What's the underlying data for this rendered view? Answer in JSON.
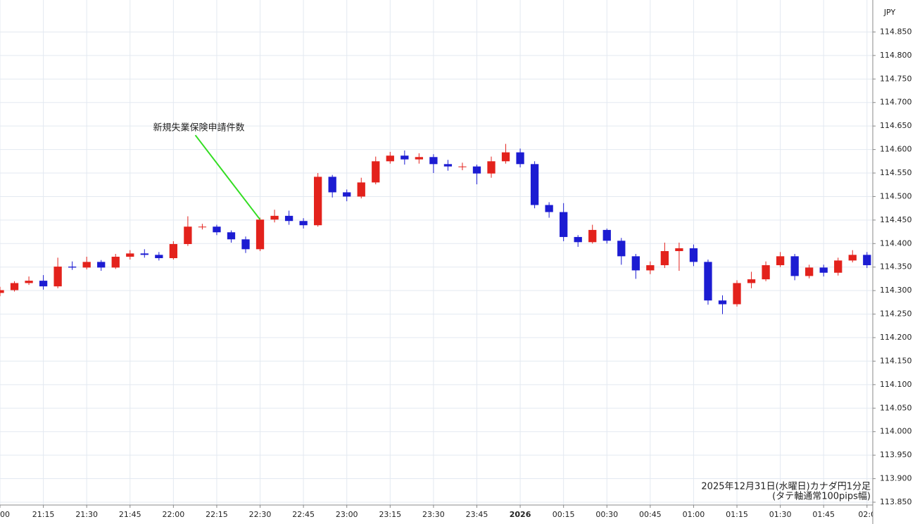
{
  "chart_data": {
    "type": "candlestick",
    "currency": "JPY",
    "caption": [
      "2025年12月31日(水曜日)カナダ円1分足",
      "(タテ軸通常100pips幅)"
    ],
    "x": [
      "21:00",
      "21:05",
      "21:10",
      "21:15",
      "21:20",
      "21:25",
      "21:30",
      "21:35",
      "21:40",
      "21:45",
      "21:50",
      "21:55",
      "22:00",
      "22:05",
      "22:10",
      "22:15",
      "22:20",
      "22:25",
      "22:30",
      "22:35",
      "22:40",
      "22:45",
      "22:50",
      "22:55",
      "23:00",
      "23:05",
      "23:10",
      "23:15",
      "23:20",
      "23:25",
      "23:30",
      "23:35",
      "23:40",
      "23:45",
      "23:50",
      "23:55",
      "00:00",
      "00:05",
      "00:10",
      "00:15",
      "00:20",
      "00:25",
      "00:30",
      "00:35",
      "00:40",
      "00:45",
      "00:50",
      "00:55",
      "01:00",
      "01:05",
      "01:10",
      "01:15",
      "01:20",
      "01:25",
      "01:30",
      "01:35",
      "01:40",
      "01:45",
      "01:50",
      "01:55",
      "02:00"
    ],
    "open": [
      114.295,
      114.301,
      114.316,
      114.321,
      114.309,
      114.351,
      114.349,
      114.361,
      114.349,
      114.372,
      114.379,
      114.376,
      114.369,
      114.399,
      114.436,
      114.436,
      114.424,
      114.409,
      114.388,
      114.451,
      114.459,
      114.448,
      114.439,
      114.542,
      114.509,
      114.5,
      114.53,
      114.575,
      114.587,
      114.579,
      114.584,
      114.569,
      114.564,
      114.564,
      114.549,
      114.575,
      114.594,
      114.569,
      114.482,
      114.467,
      114.414,
      114.403,
      114.429,
      114.406,
      114.373,
      114.343,
      114.354,
      114.384,
      114.39,
      114.361,
      114.279,
      114.271,
      114.316,
      114.324,
      114.354,
      114.373,
      114.331,
      114.349,
      114.338,
      114.364,
      114.376
    ],
    "high": [
      114.308,
      114.32,
      114.33,
      114.333,
      114.37,
      114.362,
      114.372,
      114.365,
      114.378,
      114.386,
      114.388,
      114.382,
      114.405,
      114.458,
      114.442,
      114.44,
      114.428,
      114.415,
      114.455,
      114.472,
      114.47,
      114.454,
      114.55,
      114.546,
      114.515,
      114.54,
      114.585,
      114.595,
      114.598,
      114.592,
      114.59,
      114.578,
      114.572,
      114.568,
      114.585,
      114.612,
      114.602,
      114.575,
      114.488,
      114.486,
      114.418,
      114.44,
      114.432,
      114.412,
      114.378,
      114.362,
      114.402,
      114.402,
      114.398,
      114.366,
      114.29,
      114.322,
      114.34,
      114.362,
      114.382,
      114.378,
      114.355,
      114.355,
      114.37,
      114.386,
      114.382
    ],
    "low": [
      114.288,
      114.298,
      114.312,
      114.302,
      114.305,
      114.344,
      114.345,
      114.342,
      114.346,
      114.366,
      114.37,
      114.364,
      114.366,
      114.395,
      114.43,
      114.418,
      114.402,
      114.38,
      114.384,
      114.445,
      114.44,
      114.432,
      114.436,
      114.498,
      114.49,
      114.496,
      114.526,
      114.57,
      114.568,
      114.57,
      114.55,
      114.555,
      114.556,
      114.526,
      114.54,
      114.57,
      114.562,
      114.475,
      114.455,
      114.405,
      114.393,
      114.4,
      114.4,
      114.355,
      114.325,
      114.335,
      114.348,
      114.342,
      114.352,
      114.27,
      114.25,
      114.266,
      114.305,
      114.32,
      114.35,
      114.322,
      114.326,
      114.33,
      114.332,
      114.36,
      114.348
    ],
    "close": [
      114.301,
      114.316,
      114.321,
      114.309,
      114.351,
      114.349,
      114.361,
      114.349,
      114.372,
      114.379,
      114.376,
      114.369,
      114.399,
      114.436,
      114.436,
      114.424,
      114.409,
      114.388,
      114.451,
      114.459,
      114.448,
      114.439,
      114.542,
      114.509,
      114.5,
      114.53,
      114.575,
      114.587,
      114.579,
      114.584,
      114.569,
      114.564,
      114.564,
      114.549,
      114.575,
      114.594,
      114.569,
      114.482,
      114.467,
      114.414,
      114.403,
      114.429,
      114.406,
      114.373,
      114.343,
      114.354,
      114.384,
      114.39,
      114.361,
      114.279,
      114.271,
      114.316,
      114.324,
      114.354,
      114.373,
      114.331,
      114.349,
      114.338,
      114.364,
      114.376,
      114.354
    ],
    "up_color": "#e3221c",
    "down_color": "#1c1cd2",
    "xlim": [
      "21:00",
      "02:02"
    ],
    "xticks": [
      {
        "value": "21:00",
        "label": "00"
      },
      "21:15",
      "21:30",
      "21:45",
      "22:00",
      "22:15",
      "22:30",
      "22:45",
      "23:00",
      "23:15",
      "23:30",
      "23:45",
      {
        "value": "00:00",
        "label": "2026"
      },
      "00:15",
      "00:30",
      "00:45",
      "01:00",
      "01:15",
      "01:30",
      "01:45",
      {
        "value": "02:00",
        "label": "02:0"
      }
    ],
    "ylim": [
      113.844,
      114.918
    ],
    "yticks": [
      {
        "value": 113.85,
        "label": "113.850"
      },
      {
        "value": 113.9,
        "label": "113.900"
      },
      {
        "value": 113.95,
        "label": "113.950"
      },
      {
        "value": 114.0,
        "label": "114.000"
      },
      {
        "value": 114.05,
        "label": "114.050"
      },
      {
        "value": 114.1,
        "label": "114.100"
      },
      {
        "value": 114.15,
        "label": "114.150"
      },
      {
        "value": 114.2,
        "label": "114.200"
      },
      {
        "value": 114.25,
        "label": "114.250"
      },
      {
        "value": 114.3,
        "label": "114.300"
      },
      {
        "value": 114.35,
        "label": "114.350"
      },
      {
        "value": 114.4,
        "label": "114.400"
      },
      {
        "value": 114.45,
        "label": "114.450"
      },
      {
        "value": 114.5,
        "label": "114.500"
      },
      {
        "value": 114.55,
        "label": "114.550"
      },
      {
        "value": 114.6,
        "label": "114.600"
      },
      {
        "value": 114.65,
        "label": "114.650"
      },
      {
        "value": 114.7,
        "label": "114.700"
      },
      {
        "value": 114.75,
        "label": "114.750"
      },
      {
        "value": 114.8,
        "label": "114.800"
      },
      {
        "value": 114.85,
        "label": "114.850"
      }
    ],
    "grid": true,
    "annotations": [
      {
        "text": "新規失業保険申請件数",
        "x": "22:30",
        "y": 114.451,
        "color": "#33dd22"
      }
    ]
  }
}
